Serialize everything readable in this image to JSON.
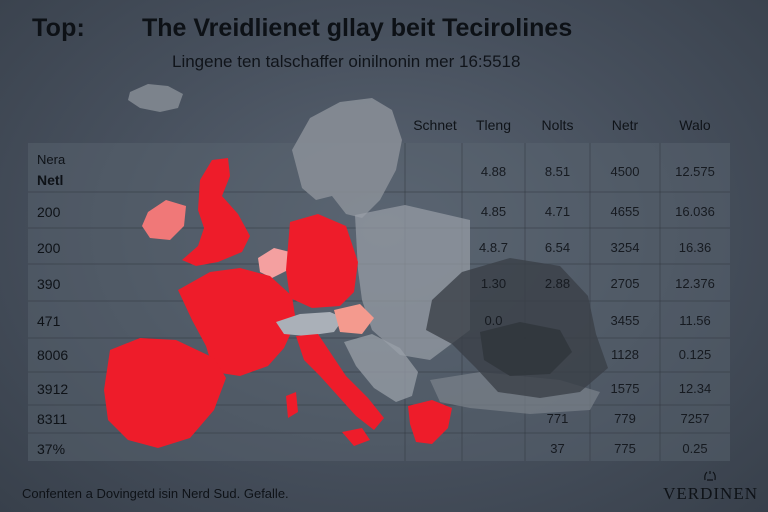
{
  "title": {
    "prefix": "Top:",
    "main": "The Vreidlienet gllay beit Tecirolines"
  },
  "subtitle": "Lingene ten talschaffer oinilnonin mer 16:5518",
  "table": {
    "row_header": [
      "Nera",
      "Netl"
    ],
    "columns": [
      "Schnet",
      "Tleng",
      "Nolts",
      "Netr",
      "Walo"
    ],
    "rows": [
      {
        "label": "",
        "cells": [
          "",
          "4.88",
          "8.51",
          "4500",
          "12.575"
        ]
      },
      {
        "label": "200",
        "cells": [
          "",
          "4.85",
          "4.71",
          "4655",
          "16.036"
        ]
      },
      {
        "label": "200",
        "cells": [
          "",
          "4.8.7",
          "6.54",
          "3254",
          "16.36"
        ]
      },
      {
        "label": "390",
        "cells": [
          "",
          "1.30",
          "2.88",
          "2705",
          "12.376"
        ]
      },
      {
        "label": "471",
        "cells": [
          "",
          "0.0",
          "",
          "3455",
          "11.56"
        ]
      },
      {
        "label": "8006",
        "cells": [
          "",
          "",
          "",
          "1128",
          "0.125"
        ]
      },
      {
        "label": "3912",
        "cells": [
          "",
          "",
          "",
          "1575",
          "12.34"
        ]
      },
      {
        "label": "8311",
        "cells": [
          "",
          "",
          "771",
          "779",
          "7257"
        ]
      },
      {
        "label": "37%",
        "cells": [
          "",
          "",
          "37",
          "775",
          "0.25"
        ]
      }
    ]
  },
  "footer": "Confenten a Dovingetd isin Nerd Sud. Gefalle.",
  "brand": "VERDINEN",
  "colors": {
    "highlight": "#ee1c2a",
    "highlight_light": "#f07878",
    "land_grey": "#9aa0a8",
    "dark_overlay": "#3a3f47",
    "background": "#4a5360"
  },
  "icons": {
    "brand_mark": "laurel-crown-icon"
  }
}
